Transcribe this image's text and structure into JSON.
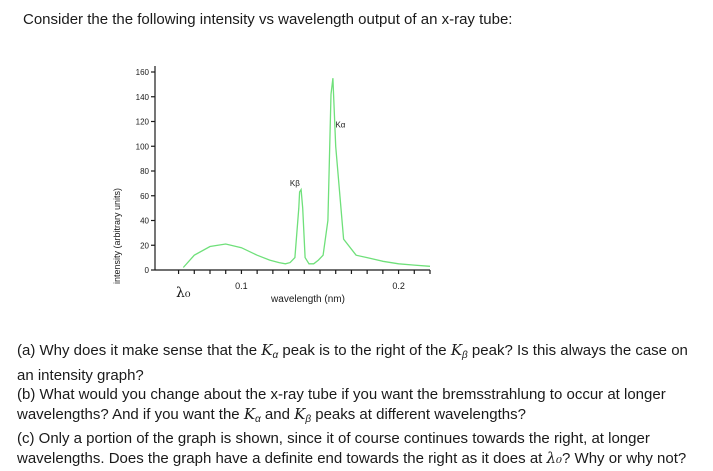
{
  "intro": "Consider the the following intensity vs wavelength output of an x-ray tube:",
  "chart_data": {
    "type": "line",
    "xlabel": "wavelength (nm)",
    "ylabel": "intensity (arbitrary units)",
    "x_tick_labels": [
      "0.1",
      "0.2"
    ],
    "x_min_marker": "λ₀",
    "y_ticks": [
      0,
      20,
      40,
      60,
      80,
      100,
      120,
      140,
      160
    ],
    "ylim": [
      0,
      165
    ],
    "xlim": [
      0.045,
      0.22
    ],
    "line_color": "#6fe07a",
    "series": [
      {
        "x": [
          0.063,
          0.07,
          0.08,
          0.09,
          0.1,
          0.11,
          0.118,
          0.124,
          0.128,
          0.131,
          0.134,
          0.1365,
          0.137,
          0.138,
          0.139,
          0.1405,
          0.143,
          0.146,
          0.149,
          0.152,
          0.155,
          0.157,
          0.1582,
          0.16,
          0.165,
          0.173,
          0.18,
          0.19,
          0.2,
          0.21,
          0.22
        ],
        "y": [
          2,
          12,
          19,
          21,
          18,
          12,
          8,
          6,
          5,
          6,
          10,
          50,
          63,
          65,
          50,
          10,
          5,
          5,
          8,
          12,
          40,
          142,
          155,
          100,
          25,
          12,
          10,
          7,
          5,
          4,
          3
        ]
      }
    ],
    "annotations": [
      {
        "text": "Kα",
        "x": 0.163,
        "y": 115
      },
      {
        "text": "Kβ",
        "x": 0.134,
        "y": 68
      }
    ]
  },
  "questions": {
    "a": {
      "p1": "(a) Why does it make sense that the ",
      "k1": "K",
      "s1": "α",
      "p2": " peak is to the right of the ",
      "k2": "K",
      "s2": "β",
      "p3": " peak? Is this always the case on an intensity graph?"
    },
    "b": {
      "p1": "(b) What would you change about the x-ray tube if you want the bremsstrahlung to occur at longer wavelengths? And if you want the ",
      "k1": "K",
      "s1": "α",
      "p2": " and ",
      "k2": "K",
      "s2": "β",
      "p3": " peaks at different wavelengths?"
    },
    "c": {
      "p1": "(c) Only a portion of the graph is shown, since it of course continues towards the right, at longer wavelengths. Does the graph have a definite end towards the right as it does at ",
      "lam": "λ₀",
      "p2": "? Why or why not?"
    }
  }
}
